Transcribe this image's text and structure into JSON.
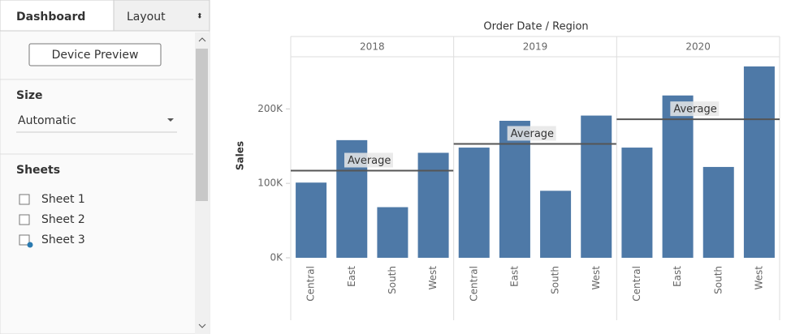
{
  "sidebar": {
    "tabs": [
      "Dashboard",
      "Layout"
    ],
    "device_preview": "Device Preview",
    "size_title": "Size",
    "size_value": "Automatic",
    "sheets_title": "Sheets",
    "sheets": [
      "Sheet 1",
      "Sheet 2",
      "Sheet 3"
    ]
  },
  "chart_data": {
    "type": "bar",
    "title": "Order Date / Region",
    "y_label": "Sales",
    "categories": [
      "Central",
      "East",
      "South",
      "West"
    ],
    "groups": [
      {
        "name": "2018",
        "values": [
          101000,
          158000,
          68000,
          141000
        ],
        "average": 117000
      },
      {
        "name": "2019",
        "values": [
          148000,
          184000,
          90000,
          191000
        ],
        "average": 153000
      },
      {
        "name": "2020",
        "values": [
          148000,
          218000,
          122000,
          257000
        ],
        "average": 186000
      }
    ],
    "average_label": "Average",
    "color": "#4e79a7",
    "line_color": "#555555",
    "ylim": [
      0,
      270000
    ],
    "yticks": [
      {
        "value": 0,
        "label": "0K"
      },
      {
        "value": 100000,
        "label": "100K"
      },
      {
        "value": 200000,
        "label": "200K"
      }
    ],
    "grid": false
  }
}
